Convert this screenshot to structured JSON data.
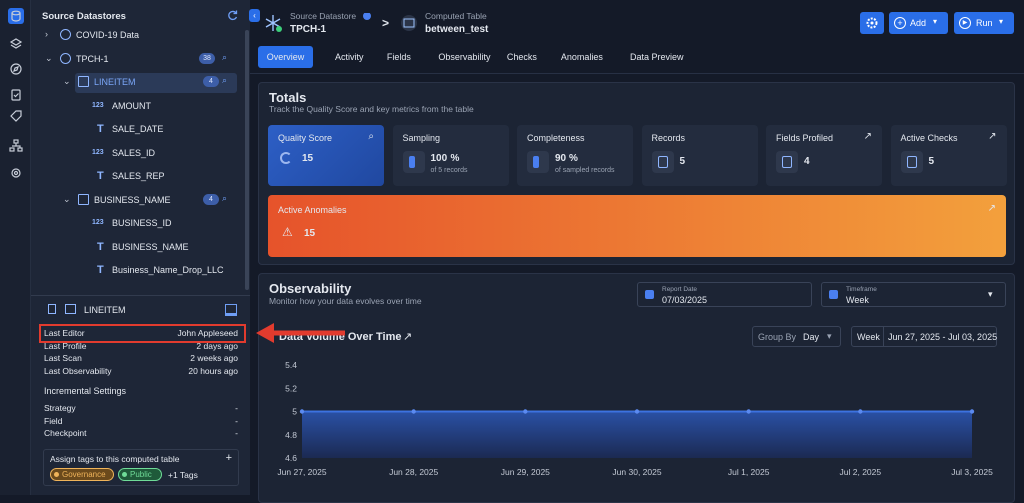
{
  "sidebar": {
    "title": "Source Datastores",
    "tree": [
      {
        "label": "COVID-19 Data"
      },
      {
        "label": "TPCH-1",
        "badge": 38,
        "children": [
          {
            "label": "LINEITEM",
            "badge": 4,
            "children": [
              {
                "icon": "123",
                "label": "AMOUNT"
              },
              {
                "icon": "T",
                "label": "SALE_DATE"
              },
              {
                "icon": "123",
                "label": "SALES_ID"
              },
              {
                "icon": "T",
                "label": "SALES_REP"
              }
            ]
          },
          {
            "label": "BUSINESS_NAME",
            "badge": 4,
            "children": [
              {
                "icon": "123",
                "label": "BUSINESS_ID"
              },
              {
                "icon": "T",
                "label": "BUSINESS_NAME"
              },
              {
                "icon": "T",
                "label": "Business_Name_Drop_LLC"
              }
            ]
          }
        ]
      }
    ],
    "details": {
      "title": "LINEITEM",
      "rows": [
        {
          "key": "Last Editor",
          "value": "John Appleseed"
        },
        {
          "key": "Last Profile",
          "value": "2 days ago"
        },
        {
          "key": "Last Scan",
          "value": "2 weeks ago"
        },
        {
          "key": "Last Observability",
          "value": "20 hours ago"
        }
      ],
      "incremental_title": "Incremental Settings",
      "incremental": [
        {
          "key": "Strategy",
          "value": "-"
        },
        {
          "key": "Field",
          "value": "-"
        },
        {
          "key": "Checkpoint",
          "value": "-"
        }
      ],
      "tags": {
        "title": "Assign tags to this computed table",
        "add": "+",
        "chips": [
          "Governance",
          "Public"
        ],
        "more": "+1 Tags"
      }
    }
  },
  "header": {
    "source_caption": "Source Datastore",
    "source": "TPCH-1",
    "separator": ">",
    "table_caption": "Computed Table",
    "table": "between_test",
    "buttons": [
      "Add",
      "Run"
    ]
  },
  "tabs": [
    "Overview",
    "Activity",
    "Fields",
    "Observability",
    "Checks",
    "Anomalies",
    "Data Preview"
  ],
  "totals": {
    "title": "Totals",
    "subtitle": "Track the Quality Score and key metrics from the table",
    "metrics": [
      {
        "label": "Quality Score",
        "value": 15
      },
      {
        "label": "Sampling",
        "value": 100,
        "unit": "%",
        "note": "of 5 records"
      },
      {
        "label": "Completeness",
        "value": 90,
        "unit": "%",
        "note": "of sampled records"
      },
      {
        "label": "Records",
        "value": 5
      },
      {
        "label": "Fields Profiled",
        "value": 4
      },
      {
        "label": "Active Checks",
        "value": 5
      }
    ],
    "anomalies": {
      "label": "Active Anomalies",
      "value": 15
    }
  },
  "observability": {
    "title": "Observability",
    "subtitle": "Monitor how your data evolves over time",
    "report_date_caption": "Report Date",
    "report_date": "07/03/2025",
    "timeframe_caption": "Timeframe",
    "timeframe": "Week",
    "group_by_caption": "Group By",
    "group_by": "Day",
    "range_caption": "Week",
    "range": "Jun 27, 2025 - Jul 03, 2025"
  },
  "chart_data": {
    "type": "area",
    "title": "Data Volume Over Time",
    "categories": [
      "Jun 27, 2025",
      "Jun 28, 2025",
      "Jun 29, 2025",
      "Jun 30, 2025",
      "Jul 1, 2025",
      "Jul 2, 2025",
      "Jul 3, 2025"
    ],
    "values": [
      5,
      5,
      5,
      5,
      5,
      5,
      5
    ],
    "color": "#3c72e0",
    "ylim": [
      4.6,
      5.4
    ],
    "yticks": [
      4.6,
      4.8,
      5,
      5.2,
      5.4
    ],
    "grid": false
  }
}
